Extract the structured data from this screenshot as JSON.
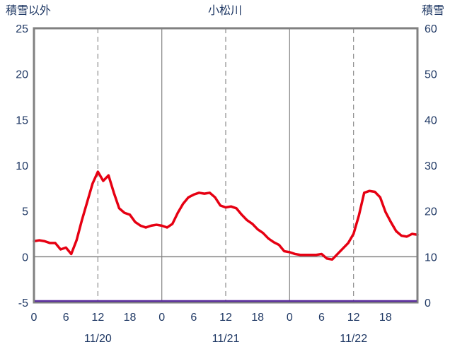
{
  "chart_data": {
    "type": "line",
    "title": "小松川",
    "left_axis": {
      "label": "積雪以外",
      "min": -5,
      "max": 25,
      "ticks": [
        25,
        20,
        15,
        10,
        5,
        0,
        -5
      ],
      "grid_values": [
        0
      ]
    },
    "right_axis": {
      "label": "積雪",
      "min": 0,
      "max": 60,
      "ticks": [
        60,
        50,
        40,
        30,
        20,
        10,
        0
      ]
    },
    "x_axis": {
      "hours_total": 72,
      "ticks": [
        {
          "hour": 0,
          "label": "0"
        },
        {
          "hour": 6,
          "label": "6"
        },
        {
          "hour": 12,
          "label": "12"
        },
        {
          "hour": 18,
          "label": "18"
        },
        {
          "hour": 24,
          "label": "0"
        },
        {
          "hour": 30,
          "label": "6"
        },
        {
          "hour": 36,
          "label": "12"
        },
        {
          "hour": 42,
          "label": "18"
        },
        {
          "hour": 48,
          "label": "0"
        },
        {
          "hour": 54,
          "label": "6"
        },
        {
          "hour": 60,
          "label": "12"
        },
        {
          "hour": 66,
          "label": "18"
        }
      ],
      "date_labels": [
        {
          "hour": 12,
          "label": "11/20"
        },
        {
          "hour": 36,
          "label": "11/21"
        },
        {
          "hour": 60,
          "label": "11/22"
        }
      ],
      "grid_dashed_hours": [
        12,
        36,
        60
      ],
      "grid_solid_hours": [
        24,
        48
      ]
    },
    "series": [
      {
        "name": "積雪以外",
        "axis": "left",
        "color": "#e60012",
        "x_start_hour": 0,
        "x_step_hours": 1,
        "values": [
          1.7,
          1.8,
          1.7,
          1.5,
          1.5,
          0.8,
          1.0,
          0.3,
          1.8,
          4.0,
          6.0,
          8.0,
          9.3,
          8.3,
          8.9,
          7.0,
          5.3,
          4.8,
          4.6,
          3.8,
          3.4,
          3.2,
          3.4,
          3.5,
          3.4,
          3.2,
          3.6,
          4.8,
          5.8,
          6.5,
          6.8,
          7.0,
          6.9,
          7.0,
          6.5,
          5.6,
          5.4,
          5.5,
          5.3,
          4.6,
          4.0,
          3.6,
          3.0,
          2.6,
          2.0,
          1.6,
          1.3,
          0.6,
          0.5,
          0.3,
          0.2,
          0.2,
          0.2,
          0.2,
          0.3,
          -0.2,
          -0.3,
          0.3,
          0.9,
          1.5,
          2.5,
          4.5,
          7.0,
          7.2,
          7.1,
          6.5,
          4.9,
          3.8,
          2.8,
          2.3,
          2.2,
          2.5,
          2.4
        ]
      },
      {
        "name": "積雪",
        "axis": "right",
        "color": "#5b2d9e",
        "constant_value": 0
      }
    ],
    "colors": {
      "axis_text": "#1f3864",
      "border": "#808080",
      "grid": "#8c8c8c"
    }
  }
}
